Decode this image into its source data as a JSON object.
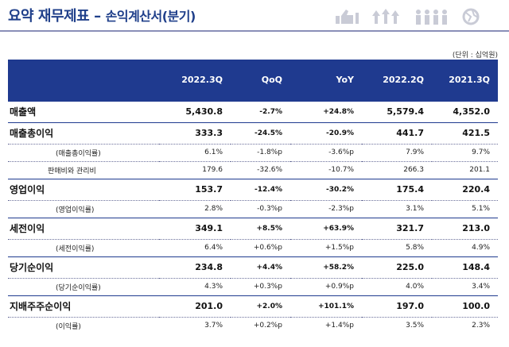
{
  "header": {
    "title": "요약 재무제표",
    "dash": "–",
    "subtitle": "손익계산서(분기)"
  },
  "icons": [
    "thumbs-up-icon",
    "growth-arrows-icon",
    "people-icon",
    "globe-icon"
  ],
  "unit_note": "(단위 : 십억원)",
  "table": {
    "columns": [
      "",
      "2022.3Q",
      "QoQ",
      "YoY",
      "2022.2Q",
      "2021.3Q"
    ],
    "rows": [
      {
        "kind": "main",
        "label": "매출액",
        "v": [
          "5,430.8",
          "-2.7%",
          "+24.8%",
          "5,579.4",
          "4,352.0"
        ]
      },
      {
        "kind": "main",
        "label": "매출총이익",
        "v": [
          "333.3",
          "-24.5%",
          "-20.9%",
          "441.7",
          "421.5"
        ]
      },
      {
        "kind": "sub",
        "label": "(매출총이익률)",
        "v": [
          "6.1%",
          "-1.8%p",
          "-3.6%p",
          "7.9%",
          "9.7%"
        ]
      },
      {
        "kind": "sub",
        "label": "판매비와 관리비",
        "v": [
          "179.6",
          "-32.6%",
          "-10.7%",
          "266.3",
          "201.1"
        ]
      },
      {
        "kind": "main",
        "label": "영업이익",
        "v": [
          "153.7",
          "-12.4%",
          "-30.2%",
          "175.4",
          "220.4"
        ]
      },
      {
        "kind": "sub",
        "label": "(영업이익률)",
        "v": [
          "2.8%",
          "-0.3%p",
          "-2.3%p",
          "3.1%",
          "5.1%"
        ]
      },
      {
        "kind": "main",
        "label": "세전이익",
        "v": [
          "349.1",
          "+8.5%",
          "+63.9%",
          "321.7",
          "213.0"
        ]
      },
      {
        "kind": "sub",
        "label": "(세전이익률)",
        "v": [
          "6.4%",
          "+0.6%p",
          "+1.5%p",
          "5.8%",
          "4.9%"
        ]
      },
      {
        "kind": "main",
        "label": "당기순이익",
        "v": [
          "234.8",
          "+4.4%",
          "+58.2%",
          "225.0",
          "148.4"
        ]
      },
      {
        "kind": "sub",
        "label": "(당기순이익률)",
        "v": [
          "4.3%",
          "+0.3%p",
          "+0.9%p",
          "4.0%",
          "3.4%"
        ]
      },
      {
        "kind": "main",
        "label": "지배주주순이익",
        "v": [
          "201.0",
          "+2.0%",
          "+101.1%",
          "197.0",
          "100.0"
        ]
      },
      {
        "kind": "sub",
        "label": "(이익률)",
        "v": [
          "3.7%",
          "+0.2%p",
          "+1.4%p",
          "3.5%",
          "2.3%"
        ]
      }
    ]
  },
  "colors": {
    "header_bg": "#1f3a8f",
    "title": "#1f3f8a",
    "icon": "#c9cbd6"
  }
}
